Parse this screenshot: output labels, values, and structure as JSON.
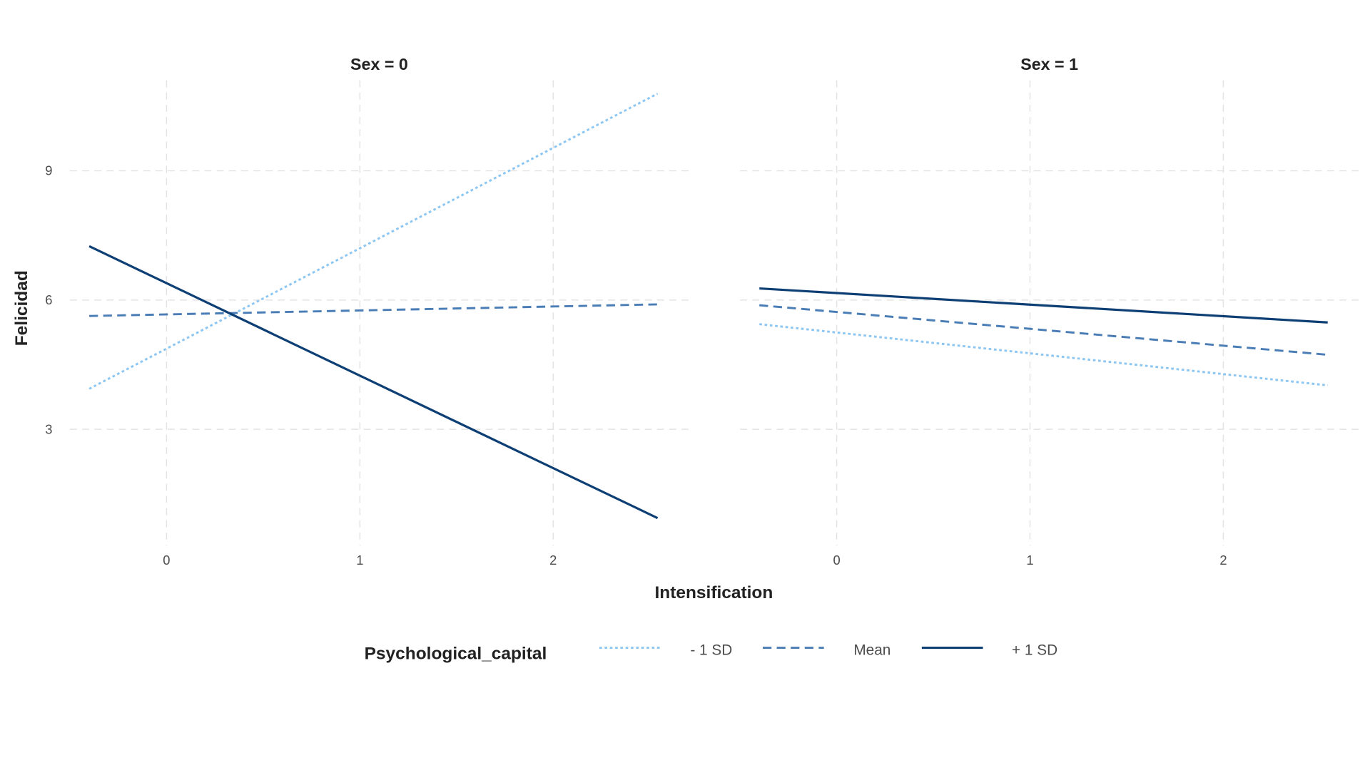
{
  "chart_data": {
    "type": "line",
    "xlabel": "Intensification",
    "ylabel": "Felicidad",
    "xlim": [
      -0.5,
      2.7
    ],
    "ylim": [
      0.3,
      11.1
    ],
    "x_ticks": [
      "0",
      "1",
      "2"
    ],
    "y_ticks": [
      "3",
      "6",
      "9"
    ],
    "grid": true,
    "legend": {
      "title": "Psychological_capital",
      "placement": "bottom",
      "entries": [
        "- 1 SD",
        "Mean",
        "+ 1 SD"
      ]
    },
    "panels": [
      {
        "strip": "Sex = 0",
        "series": [
          {
            "name": "- 1 SD",
            "x": [
              -0.4,
              2.54
            ],
            "y": [
              3.94,
              10.79
            ],
            "color": "#8CC6F2",
            "dash": "dotted"
          },
          {
            "name": "Mean",
            "x": [
              -0.4,
              2.54
            ],
            "y": [
              5.63,
              5.9
            ],
            "color": "#4A7DB5",
            "dash": "dashed"
          },
          {
            "name": "+ 1 SD",
            "x": [
              -0.4,
              2.54
            ],
            "y": [
              7.25,
              0.94
            ],
            "color": "#0D3F74",
            "dash": "solid"
          }
        ]
      },
      {
        "strip": "Sex = 1",
        "series": [
          {
            "name": "- 1 SD",
            "x": [
              -0.4,
              2.54
            ],
            "y": [
              5.44,
              4.02
            ],
            "color": "#8CC6F2",
            "dash": "dotted"
          },
          {
            "name": "Mean",
            "x": [
              -0.4,
              2.54
            ],
            "y": [
              5.88,
              4.73
            ],
            "color": "#4A7DB5",
            "dash": "dashed"
          },
          {
            "name": "+ 1 SD",
            "x": [
              -0.4,
              2.54
            ],
            "y": [
              6.27,
              5.48
            ],
            "color": "#0D3F74",
            "dash": "solid"
          }
        ]
      }
    ]
  }
}
